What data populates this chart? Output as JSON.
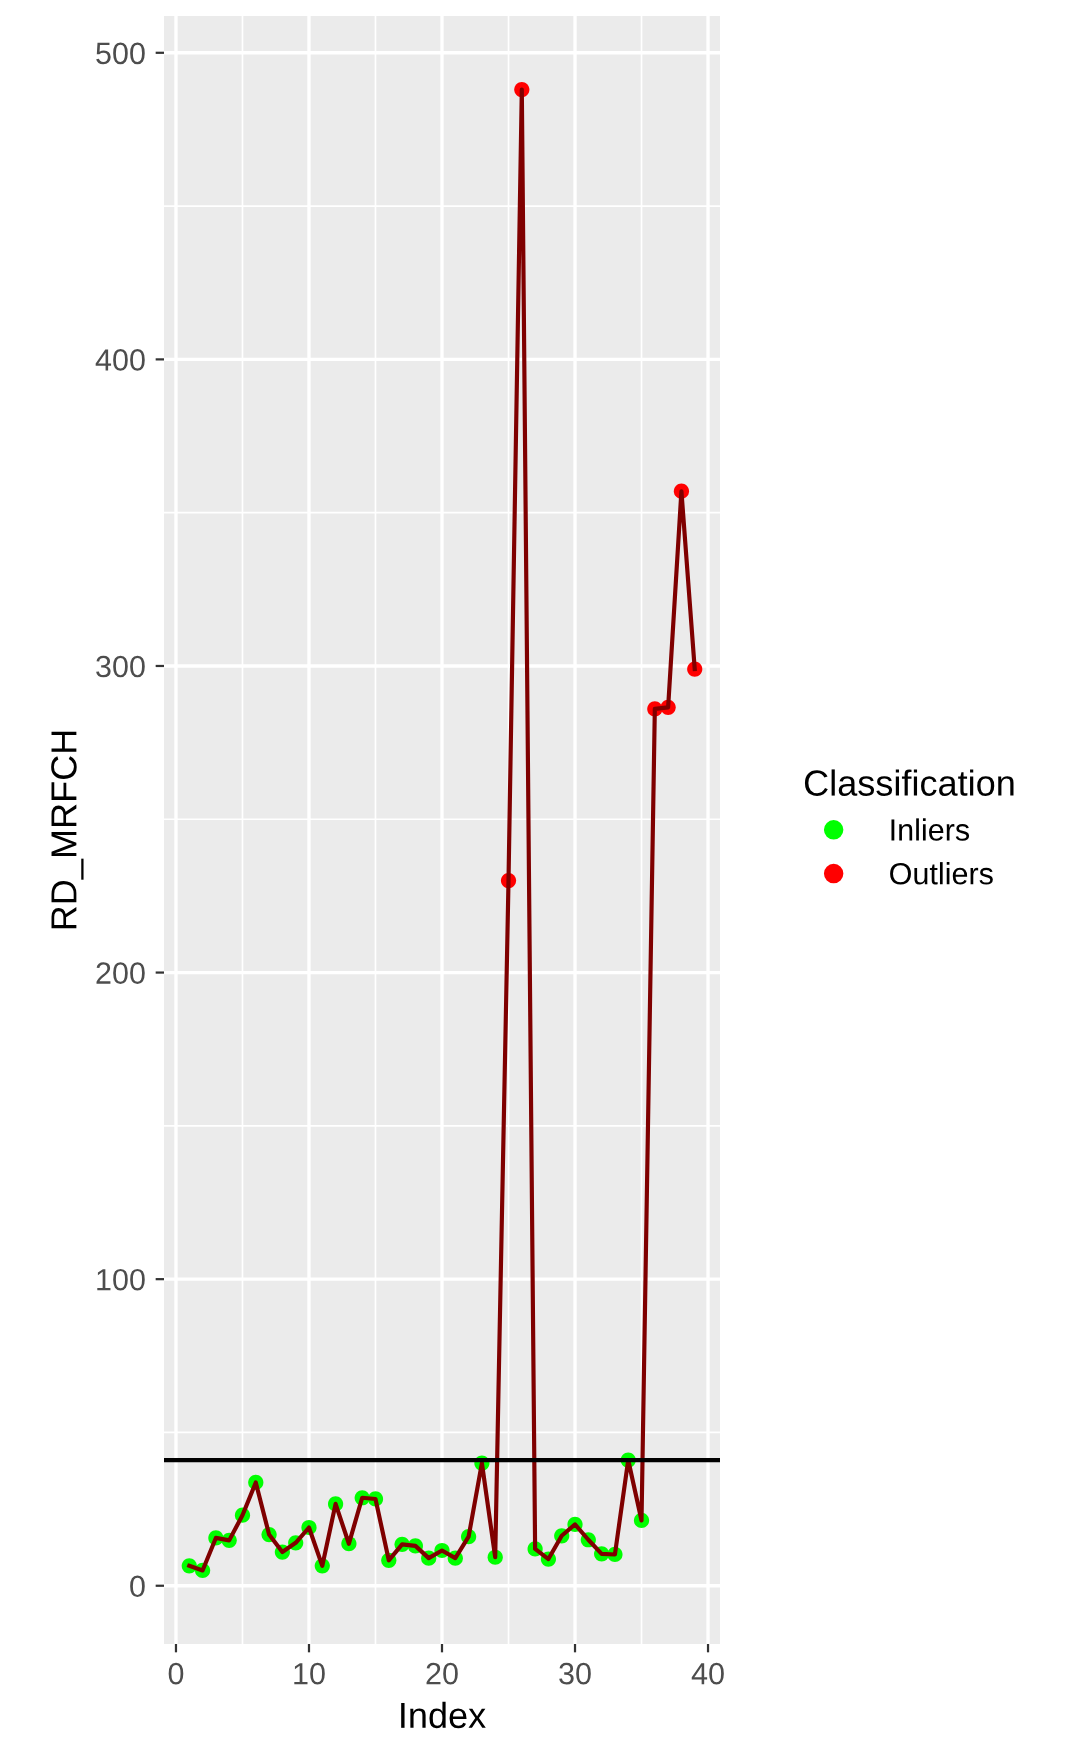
{
  "chart_data": {
    "type": "line",
    "xlabel": "Index",
    "ylabel": "RD_MRFCH",
    "legend_title": "Classification",
    "legend": "right",
    "grid": true,
    "x": [
      1,
      2,
      3,
      4,
      5,
      6,
      7,
      8,
      9,
      10,
      11,
      12,
      13,
      14,
      15,
      16,
      17,
      18,
      19,
      20,
      21,
      22,
      23,
      24,
      25,
      26,
      27,
      28,
      29,
      30,
      31,
      32,
      33,
      34,
      35,
      36,
      37,
      38,
      39
    ],
    "series": [
      {
        "color": "#7f0000",
        "marker": "none",
        "values": [
          6.5,
          5,
          15.6,
          14.8,
          23,
          33.7,
          16.7,
          11,
          14,
          19,
          6.5,
          26.7,
          13.7,
          28.7,
          28.3,
          8.3,
          13.5,
          13,
          9,
          11.5,
          9,
          16,
          40,
          9.3,
          230,
          488,
          12,
          8.7,
          16.3,
          20,
          15,
          10.4,
          10.2,
          41,
          21.3,
          286,
          286.5,
          357,
          299
        ]
      },
      {
        "type": "scatter",
        "name": "Inliers",
        "color": "#00ff00",
        "marker": "circle",
        "values": [
          6.5,
          5,
          15.6,
          14.8,
          23,
          33.7,
          16.7,
          11,
          14,
          19,
          6.5,
          26.7,
          13.7,
          28.7,
          28.3,
          8.3,
          13.5,
          13,
          9,
          11.5,
          9,
          16,
          40,
          9.3,
          null,
          null,
          12,
          8.7,
          16.3,
          20,
          15,
          10.4,
          10.2,
          41,
          21.3,
          null,
          null,
          null,
          null
        ]
      },
      {
        "type": "scatter",
        "name": "Outliers",
        "color": "#ff0000",
        "marker": "circle",
        "values": [
          null,
          null,
          null,
          null,
          null,
          null,
          null,
          null,
          null,
          null,
          null,
          null,
          null,
          null,
          null,
          null,
          null,
          null,
          null,
          null,
          null,
          null,
          null,
          null,
          230,
          488,
          null,
          null,
          null,
          null,
          null,
          null,
          null,
          null,
          null,
          286,
          286.5,
          357,
          299
        ]
      }
    ],
    "ref_lines": [
      {
        "axis": "y",
        "value": 41,
        "color": "#000000",
        "line_style": "solid"
      }
    ],
    "xlim": [
      -0.9,
      40.9
    ],
    "xticks": [
      0,
      10,
      20,
      30,
      40
    ],
    "ylim": [
      -19,
      512
    ],
    "yticks": [
      0,
      100,
      200,
      300,
      400,
      500
    ]
  }
}
